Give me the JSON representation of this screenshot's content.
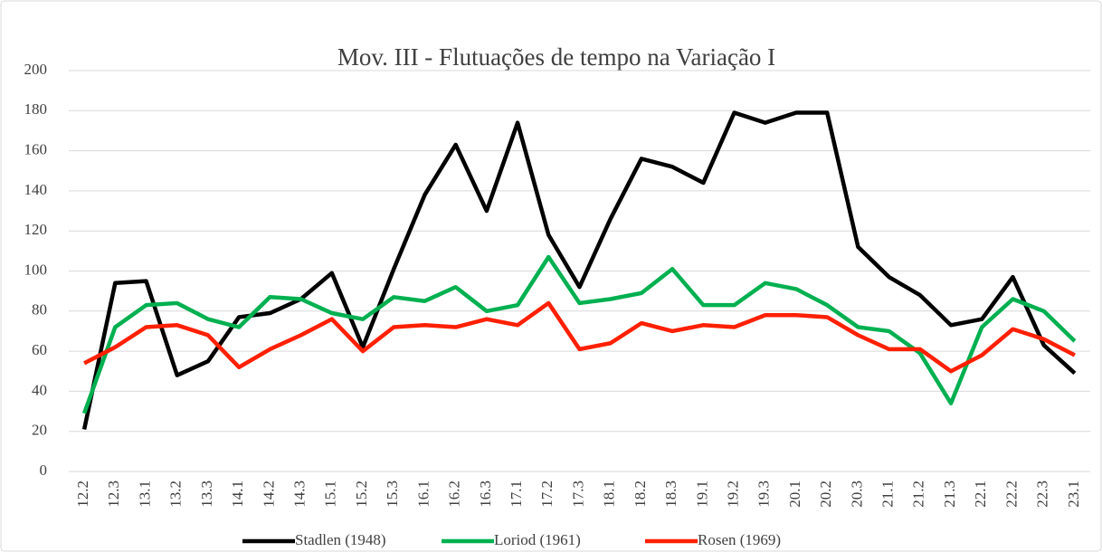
{
  "chart_data": {
    "type": "line",
    "title": "Mov. III - Flutuações de tempo na Variação I",
    "categories": [
      "12.2",
      "12.3",
      "13.1",
      "13.2",
      "13.3",
      "14.1",
      "14.2",
      "14.3",
      "15.1",
      "15.2",
      "15.3",
      "16.1",
      "16.2",
      "16.3",
      "17.1",
      "17.2",
      "17.3",
      "18.1",
      "18.2",
      "18.3",
      "19.1",
      "19.2",
      "19.3",
      "20.1",
      "20.2",
      "20.3",
      "21.1",
      "21.2",
      "21.3",
      "22.1",
      "22.2",
      "22.3",
      "23.1"
    ],
    "series": [
      {
        "name": "Stadlen (1948)",
        "color": "#000000",
        "values": [
          21,
          94,
          95,
          48,
          55,
          77,
          79,
          86,
          99,
          62,
          101,
          138,
          163,
          130,
          174,
          118,
          92,
          126,
          156,
          152,
          144,
          179,
          174,
          179,
          179,
          112,
          97,
          88,
          73,
          76,
          97,
          63,
          49
        ]
      },
      {
        "name": "Loriod (1961)",
        "color": "#00b050",
        "values": [
          29,
          72,
          83,
          84,
          76,
          72,
          87,
          86,
          79,
          76,
          87,
          85,
          92,
          80,
          83,
          107,
          84,
          86,
          89,
          101,
          83,
          83,
          94,
          91,
          83,
          72,
          70,
          59,
          34,
          72,
          86,
          80,
          65
        ]
      },
      {
        "name": "Rosen (1969)",
        "color": "#ff2000",
        "values": [
          54,
          62,
          72,
          73,
          68,
          52,
          61,
          68,
          76,
          60,
          72,
          73,
          72,
          76,
          73,
          84,
          61,
          64,
          74,
          70,
          73,
          72,
          78,
          78,
          77,
          68,
          61,
          61,
          50,
          58,
          71,
          66,
          58
        ]
      }
    ],
    "ylim": [
      0,
      200
    ],
    "yticks": [
      0,
      20,
      40,
      60,
      80,
      100,
      120,
      140,
      160,
      180,
      200
    ],
    "grid": true,
    "legend": "bottom"
  }
}
